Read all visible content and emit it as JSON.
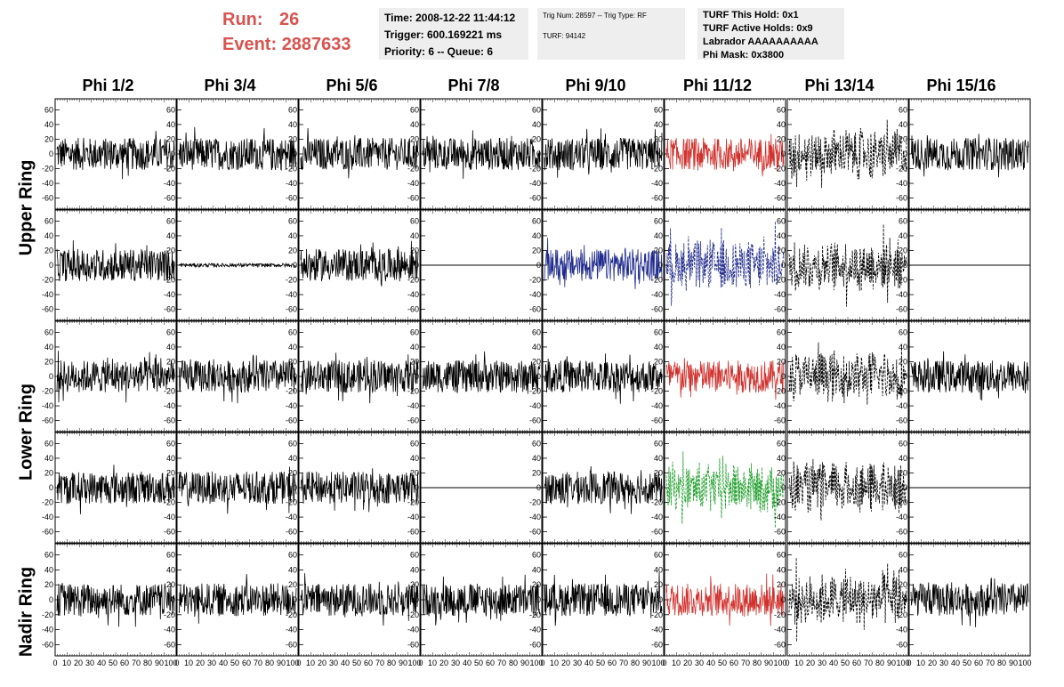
{
  "run": {
    "label": "Run:",
    "value": "26"
  },
  "event": {
    "label": "Event:",
    "value": "2887633"
  },
  "info_time": {
    "time": "Time: 2008-12-22 11:44:12",
    "trigger": "Trigger: 600.169221 ms",
    "priority": "Priority: 6 -- Queue: 6"
  },
  "info_trig": {
    "trig": "Trig Num: 28597 -- Trig Type: RF",
    "turf": "TURF: 94142"
  },
  "info_turf": {
    "hold": "TURF This Hold: 0x1",
    "active": "TURF Active Holds: 0x9",
    "labrador": "Labrador AAAAAAAAAA",
    "mask": "Phi Mask: 0x3800"
  },
  "columns": [
    "Phi 1/2",
    "Phi 3/4",
    "Phi 5/6",
    "Phi 7/8",
    "Phi 9/10",
    "Phi 11/12",
    "Phi 13/14",
    "Phi 15/16"
  ],
  "rings": [
    "Upper Ring",
    "Lower Ring",
    "Nadir Ring"
  ],
  "y_ticks": [
    60,
    40,
    20,
    0,
    -20,
    -40,
    -60
  ],
  "x_tick_labels": [
    "0",
    "10",
    "20",
    "30",
    "40",
    "50",
    "60",
    "70",
    "80",
    "90",
    "100"
  ],
  "colors": {
    "red": "#d0312d",
    "blue": "#1f2a8c",
    "green": "#1e9e2a",
    "black": "#000000",
    "run_text": "#d9534f"
  },
  "traces": [
    [
      "black-solid",
      "black-solid",
      "black-solid",
      "black-solid",
      "black-solid",
      "red-solid",
      "black-dashed",
      "black-solid"
    ],
    [
      "black-solid",
      "black-flat-small",
      "black-solid",
      "flat-line",
      "blue-solid",
      "blue-dashed",
      "black-dashed",
      "flat-line"
    ],
    [
      "black-solid",
      "black-solid",
      "black-solid",
      "black-solid",
      "black-solid",
      "red-solid",
      "black-dashed",
      "black-solid"
    ],
    [
      "black-solid",
      "black-solid",
      "black-solid",
      "flat-line",
      "black-solid",
      "green-dashed",
      "black-dashed",
      "flat-line"
    ],
    [
      "black-solid",
      "black-solid",
      "black-solid",
      "black-solid",
      "black-solid",
      "red-solid",
      "black-dashed",
      "black-solid"
    ]
  ]
}
